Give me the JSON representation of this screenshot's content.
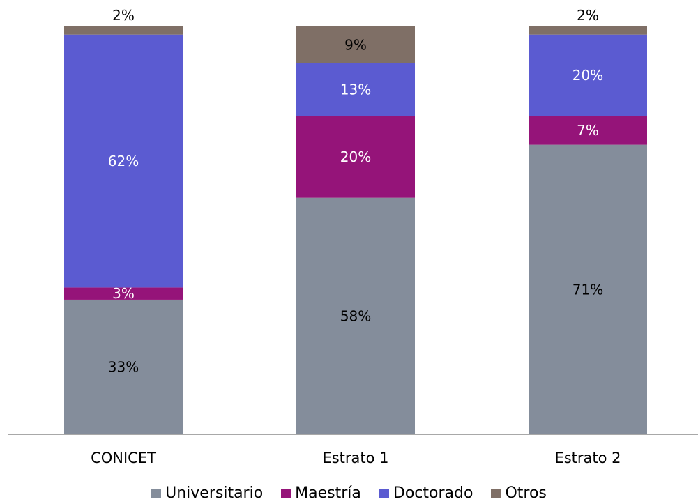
{
  "chart_data": {
    "type": "bar",
    "stacked": true,
    "percent_stacked": true,
    "categories": [
      "CONICET",
      "Estrato 1",
      "Estrato 2"
    ],
    "series": [
      {
        "name": "Universitario",
        "color": "#848d9b",
        "values": [
          33,
          58,
          71
        ],
        "labels": [
          "33%",
          "58%",
          "71%"
        ],
        "label_color": "#000000"
      },
      {
        "name": "Maestría",
        "color": "#951479",
        "values": [
          3,
          20,
          7
        ],
        "labels": [
          "3%",
          "20%",
          "7%"
        ],
        "label_color": "#ffffff"
      },
      {
        "name": "Doctorado",
        "color": "#5b5bd1",
        "values": [
          62,
          13,
          20
        ],
        "labels": [
          "62%",
          "13%",
          "20%"
        ],
        "label_color": "#ffffff"
      },
      {
        "name": "Otros",
        "color": "#7f6f66",
        "values": [
          2,
          9,
          2
        ],
        "labels": [
          "2%",
          "9%",
          "2%"
        ],
        "label_color": "#000000"
      }
    ],
    "legend_position": "bottom",
    "grid": false,
    "ylim": [
      0,
      100
    ]
  }
}
